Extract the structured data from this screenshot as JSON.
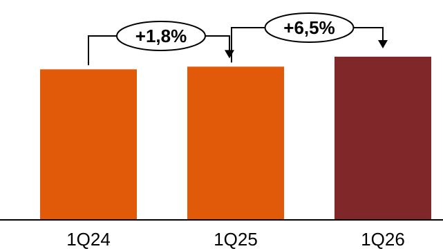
{
  "chart_data": {
    "type": "bar",
    "categories": [
      "1Q24",
      "1Q25",
      "1Q26"
    ],
    "values": [
      100,
      101.8,
      108.4
    ],
    "bar_colors": [
      "#E05A0A",
      "#E05A0A",
      "#80272A"
    ],
    "annotations": [
      {
        "from": "1Q24",
        "to": "1Q25",
        "text": "+1,8%"
      },
      {
        "from": "1Q25",
        "to": "1Q26",
        "text": "+6,5%"
      }
    ],
    "title": "",
    "xlabel": "",
    "ylabel": "",
    "grid": false,
    "legend": "none"
  }
}
